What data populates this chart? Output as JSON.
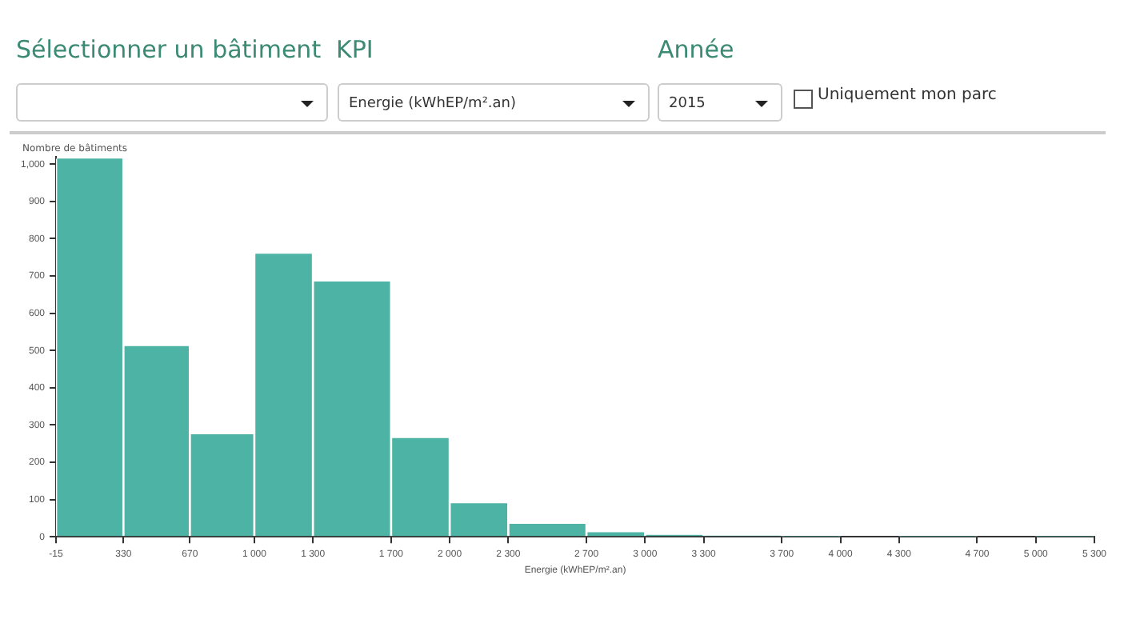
{
  "chart_data": {
    "type": "histogram",
    "ylabel": "Nombre de bâtiments",
    "xlabel": "Energie (kWhEP/m².an)",
    "annotations": [
      "Sélectionner un bâtiment",
      "KPI",
      "Année",
      "Energie (kWhEP/m².an)",
      "2015",
      "Uniquement mon parc"
    ],
    "bins": [
      -15,
      330,
      670,
      1000,
      1300,
      1700,
      2000,
      2300,
      2700,
      3000,
      3300,
      3700,
      4000,
      4300,
      4700,
      5000,
      5300
    ],
    "values": [
      1015,
      512,
      275,
      760,
      685,
      265,
      90,
      35,
      12,
      5,
      3,
      1,
      0,
      1,
      0,
      1
    ],
    "color": "#4db3a4",
    "xlim": [
      -15,
      5300
    ],
    "xticks": [
      -15,
      330,
      670,
      {
        "value": 1000,
        "label": "1 000"
      },
      {
        "value": 1300,
        "label": "1 300"
      },
      {
        "value": 1700,
        "label": "1 700"
      },
      {
        "value": 2000,
        "label": "2 000"
      },
      {
        "value": 2300,
        "label": "2 300"
      },
      {
        "value": 2700,
        "label": "2 700"
      },
      {
        "value": 3000,
        "label": "3 000"
      },
      {
        "value": 3300,
        "label": "3 300"
      },
      {
        "value": 3700,
        "label": "3 700"
      },
      {
        "value": 4000,
        "label": "4 000"
      },
      {
        "value": 4300,
        "label": "4 300"
      },
      {
        "value": 4700,
        "label": "4 700"
      },
      {
        "value": 5000,
        "label": "5 000"
      },
      {
        "value": 5300,
        "label": "5 300"
      }
    ],
    "ylim": [
      0,
      1020
    ],
    "yticks": [
      0,
      100,
      200,
      300,
      400,
      500,
      600,
      700,
      800,
      900,
      {
        "value": 1000,
        "label": "1,000"
      }
    ],
    "grid": false,
    "legend": false
  }
}
